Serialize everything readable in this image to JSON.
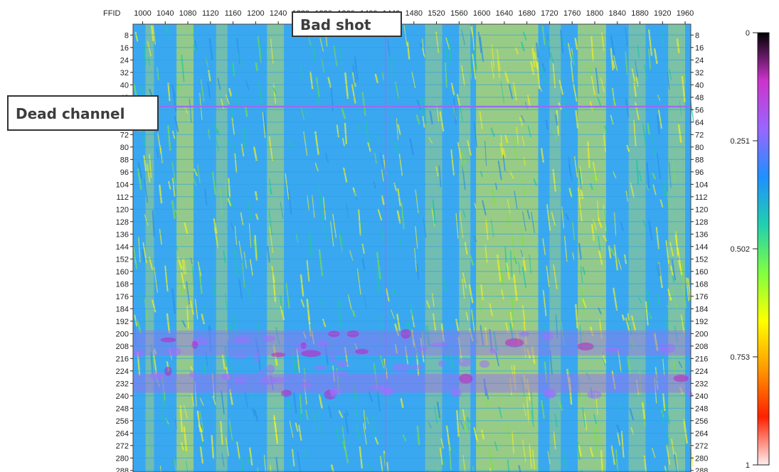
{
  "chart_data": {
    "type": "heatmap",
    "x_axis_label": "FFID",
    "x_ticks": [
      1000,
      1040,
      1080,
      1120,
      1160,
      1200,
      1240,
      1280,
      1320,
      1360,
      1400,
      1440,
      1480,
      1520,
      1560,
      1600,
      1640,
      1680,
      1720,
      1760,
      1800,
      1840,
      1880,
      1920,
      1960
    ],
    "xlim": [
      983,
      1970
    ],
    "y_ticks": [
      8,
      16,
      24,
      32,
      40,
      48,
      56,
      64,
      72,
      80,
      88,
      96,
      104,
      112,
      120,
      128,
      136,
      144,
      152,
      160,
      168,
      176,
      184,
      192,
      200,
      208,
      216,
      224,
      232,
      240,
      248,
      256,
      264,
      272,
      280,
      288
    ],
    "ylim": [
      1,
      289
    ],
    "colorbar": {
      "ticks": [
        "0",
        "0.251",
        "0.502",
        "0.753",
        "1"
      ],
      "range": [
        0,
        1
      ],
      "colors": [
        "#000000",
        "#cc33cc",
        "#9966ff",
        "#1e90ff",
        "#20d0b0",
        "#80ff40",
        "#ffff00",
        "#ff9900",
        "#ff2000",
        "#ffeeee"
      ]
    },
    "annotations": [
      {
        "text": "Bad shot",
        "ffid": 1430
      },
      {
        "text": "Dead channel",
        "channel": 54
      }
    ]
  }
}
